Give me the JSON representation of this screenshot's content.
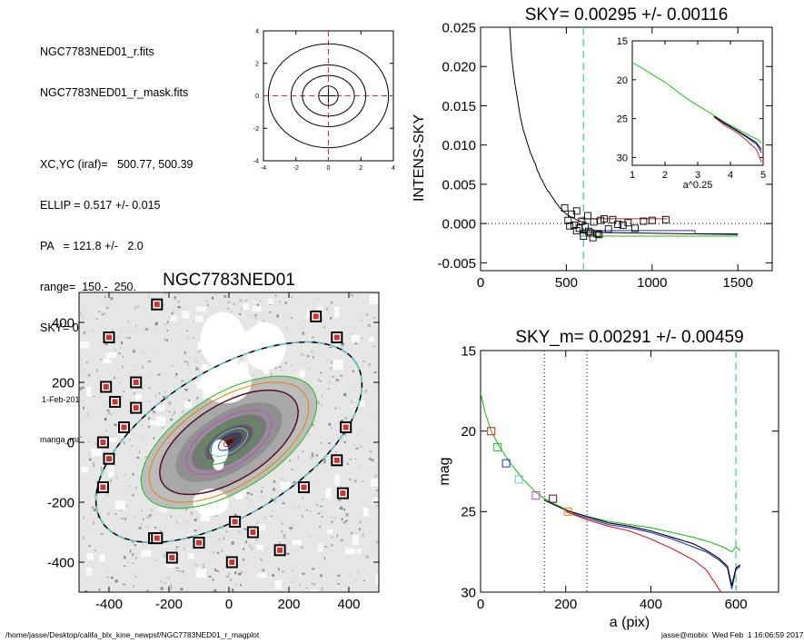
{
  "info": {
    "file": "NGC7783NED01_r.fits",
    "mask_file": "NGC7783NED01_r_mask.fits",
    "xcyc": "XC,YC (iraf)=   500.77, 500.39",
    "ellip": "ELLIP = 0.517 +/- 0.015",
    "pa": "PA   = 121.8 +/-   2.0",
    "range": "range=  150.-  250.",
    "sky": "SKY= 0.00295 +/- 0.00116",
    "date": "1-Feb-2017 16:06:59.00",
    "program": "manga_make_datalist0.pro (version ALPHA)"
  },
  "footer": {
    "path": "/home/jasse/Desktop/califa_blx_kine_newpsf/NGC7783NED01_r_magplot",
    "user": "jasse@mobix  Wed Feb  1 16:06:59 2017"
  },
  "colors": {
    "black": "#000000",
    "red": "#cc2222",
    "green": "#22bb22",
    "blue": "#2233bb",
    "cyan": "#66cccc",
    "dashred": "#cc3333",
    "magenta": "#cc44cc",
    "orange": "#dd8800",
    "maroon": "#551122"
  },
  "chart_data": [
    {
      "id": "contour",
      "type": "contour",
      "xlim": [
        -4,
        4
      ],
      "ylim": [
        -4,
        4
      ],
      "xticks": [
        -4,
        -2,
        0,
        2,
        4
      ],
      "yticks": [
        -4,
        -2,
        0,
        2,
        4
      ],
      "xticklabels": [
        "-4",
        "-2",
        "0",
        "2",
        "4"
      ],
      "yticklabels": [
        "-4",
        "-2",
        "0",
        "2",
        "4"
      ],
      "levels": [
        {
          "rx": 0.6,
          "ry": 0.6
        },
        {
          "rx": 1.6,
          "ry": 1.25
        },
        {
          "rx": 2.3,
          "ry": 1.9
        },
        {
          "rx": 3.7,
          "ry": 3.2
        }
      ],
      "crosshair": {
        "x": 0,
        "y": 0
      }
    },
    {
      "id": "sky",
      "type": "line",
      "title": "SKY= 0.00295 +/- 0.00116",
      "ylabel": "INTENS-SKY",
      "xlim": [
        0,
        1700
      ],
      "ylim": [
        -0.006,
        0.025
      ],
      "xticks": [
        0,
        500,
        1000,
        1500
      ],
      "xticklabels": [
        "0",
        "500",
        "1000",
        "1500"
      ],
      "yticks": [
        -0.005,
        0.0,
        0.005,
        0.01,
        0.015,
        0.02,
        0.025
      ],
      "yticklabels": [
        "-0.005",
        "0.000",
        "0.005",
        "0.010",
        "0.015",
        "0.020",
        "0.025"
      ],
      "vline": 600,
      "profile": {
        "x": [
          170,
          180,
          190,
          200,
          210,
          220,
          230,
          240,
          250,
          260,
          270,
          280,
          290,
          300,
          310,
          320,
          330,
          340,
          350,
          360,
          370,
          380,
          390,
          400,
          410,
          420,
          430,
          440,
          450,
          460,
          470,
          480,
          490,
          500,
          510,
          520,
          530,
          540,
          550,
          560,
          570,
          580,
          590,
          600,
          610,
          620
        ],
        "y": [
          0.025,
          0.0215,
          0.0195,
          0.0178,
          0.0165,
          0.0152,
          0.0138,
          0.0128,
          0.0118,
          0.0112,
          0.0104,
          0.0098,
          0.009,
          0.0086,
          0.008,
          0.0076,
          0.0068,
          0.0064,
          0.0058,
          0.0055,
          0.005,
          0.0046,
          0.0042,
          0.004,
          0.0036,
          0.0033,
          0.003,
          0.0026,
          0.0024,
          0.002,
          0.0019,
          0.0016,
          0.0014,
          0.0012,
          0.0011,
          0.0009,
          0.0008,
          0.0007,
          0.0006,
          0.0005,
          0.0004,
          0.0003,
          0.0002,
          0.0002,
          0.0001,
          0.0001
        ]
      },
      "sky_points": {
        "x": [
          490,
          510,
          530,
          545,
          560,
          575,
          590,
          610,
          625,
          640,
          660,
          680,
          700,
          720,
          745,
          770,
          800,
          830,
          860,
          900,
          950,
          1000,
          1080,
          600,
          630,
          655,
          690,
          560,
          520
        ],
        "y": [
          0.002,
          0.0004,
          0.0012,
          -0.0002,
          0.0016,
          -0.0006,
          0.0003,
          -0.0004,
          0.001,
          -0.0012,
          0.0002,
          -0.0013,
          0.0004,
          0.0006,
          -0.0007,
          0.0005,
          -0.0001,
          -0.0002,
          0.0001,
          -0.0006,
          0.0003,
          0.0004,
          0.0005,
          -0.0016,
          -0.001,
          -0.0018,
          -0.0014,
          -0.0009,
          -0.0003
        ]
      },
      "series": [
        {
          "color": "red",
          "x": [
            580,
            1090
          ],
          "y": [
            0.0006,
            0.0006
          ]
        },
        {
          "color": "blue",
          "x": [
            580,
            1250,
            1250,
            1500
          ],
          "y": [
            -0.0009,
            -0.0009,
            -0.0013,
            -0.0013
          ]
        },
        {
          "color": "green",
          "x": [
            580,
            1500
          ],
          "y": [
            -0.0016,
            -0.0016
          ]
        },
        {
          "color": "black",
          "x": [
            580,
            1500
          ],
          "y": [
            -0.0011,
            -0.0014
          ]
        }
      ],
      "inset": {
        "xlabel": "a^0.25",
        "xlim": [
          1,
          5
        ],
        "ylim": [
          15,
          31
        ],
        "xticks": [
          1,
          2,
          3,
          4,
          5
        ],
        "xticklabels": [
          "1",
          "2",
          "3",
          "4",
          "5"
        ],
        "yticks": [
          15,
          20,
          25,
          30
        ],
        "yticklabels": [
          "15",
          "20",
          "25",
          "30"
        ],
        "curves": [
          {
            "color": "green",
            "x": [
              1.0,
              1.3,
              1.6,
              2.0,
              2.4,
              2.8,
              3.2,
              3.5,
              3.8,
              4.2,
              4.5,
              4.8,
              4.95
            ],
            "y": [
              17.8,
              18.5,
              19.3,
              20.3,
              21.6,
              22.8,
              23.8,
              24.6,
              25.4,
              26.3,
              27.0,
              27.6,
              28.1
            ]
          },
          {
            "color": "blue",
            "x": [
              3.5,
              3.8,
              4.2,
              4.5,
              4.8,
              4.95
            ],
            "y": [
              24.7,
              25.6,
              26.6,
              27.4,
              28.3,
              29.4
            ]
          },
          {
            "color": "red",
            "x": [
              3.5,
              3.8,
              4.2,
              4.5,
              4.8,
              4.95
            ],
            "y": [
              24.8,
              25.8,
              26.8,
              27.8,
              29.0,
              30.6
            ]
          },
          {
            "color": "black",
            "x": [
              3.5,
              3.8,
              4.2,
              4.5,
              4.8,
              4.95
            ],
            "y": [
              24.7,
              25.5,
              26.5,
              27.3,
              28.1,
              29.0
            ]
          }
        ]
      }
    },
    {
      "id": "image",
      "type": "image",
      "title": "NGC7783NED01",
      "xlim": [
        -500,
        500
      ],
      "ylim": [
        -500,
        500
      ],
      "xticks": [
        -400,
        -200,
        0,
        200,
        400
      ],
      "xticklabels": [
        "-400",
        "-200",
        "0",
        "200",
        "400"
      ],
      "yticks": [
        -400,
        -200,
        0,
        200,
        400
      ],
      "yticklabels": [
        "-400",
        "-200",
        "0",
        "200",
        "400"
      ],
      "ellipse": {
        "a": 500,
        "b": 242,
        "pa_deg": 31.8
      },
      "inner_ellipses": [
        {
          "a": 260,
          "b": 126,
          "color": "maroon"
        },
        {
          "a": 330,
          "b": 160,
          "color": "green"
        },
        {
          "a": 300,
          "b": 145,
          "color": "orange"
        },
        {
          "a": 160,
          "b": 78,
          "color": "magenta"
        },
        {
          "a": 110,
          "b": 54,
          "color": "green"
        },
        {
          "a": 70,
          "b": 34,
          "color": "cyan"
        },
        {
          "a": 40,
          "b": 20,
          "color": "blue"
        },
        {
          "a": 20,
          "b": 10,
          "color": "red"
        }
      ],
      "boxes": {
        "x": [
          -240,
          290,
          -400,
          360,
          -410,
          -310,
          -380,
          -310,
          -350,
          -420,
          390,
          -400,
          360,
          -420,
          250,
          380,
          -250,
          20,
          80,
          -240,
          -100,
          170,
          -190,
          10
        ],
        "y": [
          460,
          420,
          350,
          350,
          185,
          200,
          135,
          115,
          50,
          0,
          50,
          -55,
          -60,
          -150,
          -150,
          -170,
          -320,
          -265,
          -300,
          -320,
          -335,
          -360,
          -385,
          -400
        ]
      }
    },
    {
      "id": "mag",
      "type": "line",
      "title": "SKY_m=  0.00291 +/- 0.00459",
      "xlabel": "a (pix)",
      "ylabel": "mag",
      "xlim": [
        0,
        700
      ],
      "ylim": [
        15,
        30
      ],
      "xticks": [
        0,
        200,
        400,
        600
      ],
      "xticklabels": [
        "0",
        "200",
        "400",
        "600"
      ],
      "yticks": [
        15,
        20,
        25,
        30
      ],
      "yticklabels": [
        "15",
        "20",
        "25",
        "30"
      ],
      "vlines_dotted": [
        150,
        250
      ],
      "vline_cyan": 600,
      "curves": [
        {
          "color": "green",
          "x": [
            0,
            10,
            25,
            45,
            70,
            100,
            130,
            150,
            180,
            210,
            250,
            300,
            350,
            400,
            450,
            500,
            540,
            570,
            590,
            600,
            610
          ],
          "y": [
            17.6,
            18.8,
            20.0,
            21.0,
            22.0,
            23.0,
            23.8,
            24.2,
            24.6,
            25.0,
            25.3,
            25.6,
            25.8,
            26.0,
            26.3,
            26.6,
            26.9,
            27.2,
            27.5,
            27.2,
            27.4
          ]
        },
        {
          "color": "blue",
          "x": [
            200,
            250,
            300,
            350,
            400,
            450,
            500,
            530,
            560,
            580,
            590,
            600,
            610
          ],
          "y": [
            25.0,
            25.4,
            25.8,
            26.0,
            26.3,
            26.7,
            27.2,
            27.5,
            28.0,
            28.5,
            29.8,
            28.6,
            28.4
          ]
        },
        {
          "color": "red",
          "x": [
            200,
            250,
            300,
            350,
            400,
            450,
            500,
            530,
            550,
            565
          ],
          "y": [
            25.0,
            25.5,
            25.9,
            26.2,
            26.7,
            27.3,
            28.0,
            28.6,
            29.4,
            30.0
          ]
        },
        {
          "color": "black",
          "x": [
            150,
            200,
            250,
            300,
            350,
            400,
            450,
            500,
            530,
            560,
            580,
            590,
            600,
            610
          ],
          "y": [
            24.3,
            24.9,
            25.3,
            25.7,
            25.9,
            26.2,
            26.6,
            27.0,
            27.4,
            27.9,
            28.4,
            29.6,
            28.5,
            28.3
          ]
        }
      ],
      "markers": [
        {
          "x": 25,
          "y": 20.0,
          "color": "red"
        },
        {
          "x": 40,
          "y": 21.0,
          "color": "green"
        },
        {
          "x": 60,
          "y": 22.0,
          "color": "blue"
        },
        {
          "x": 90,
          "y": 23.0,
          "color": "cyan"
        },
        {
          "x": 130,
          "y": 24.0,
          "color": "magenta"
        },
        {
          "x": 170,
          "y": 24.2,
          "color": "maroon"
        },
        {
          "x": 205,
          "y": 25.0,
          "color": "orange"
        }
      ]
    }
  ]
}
